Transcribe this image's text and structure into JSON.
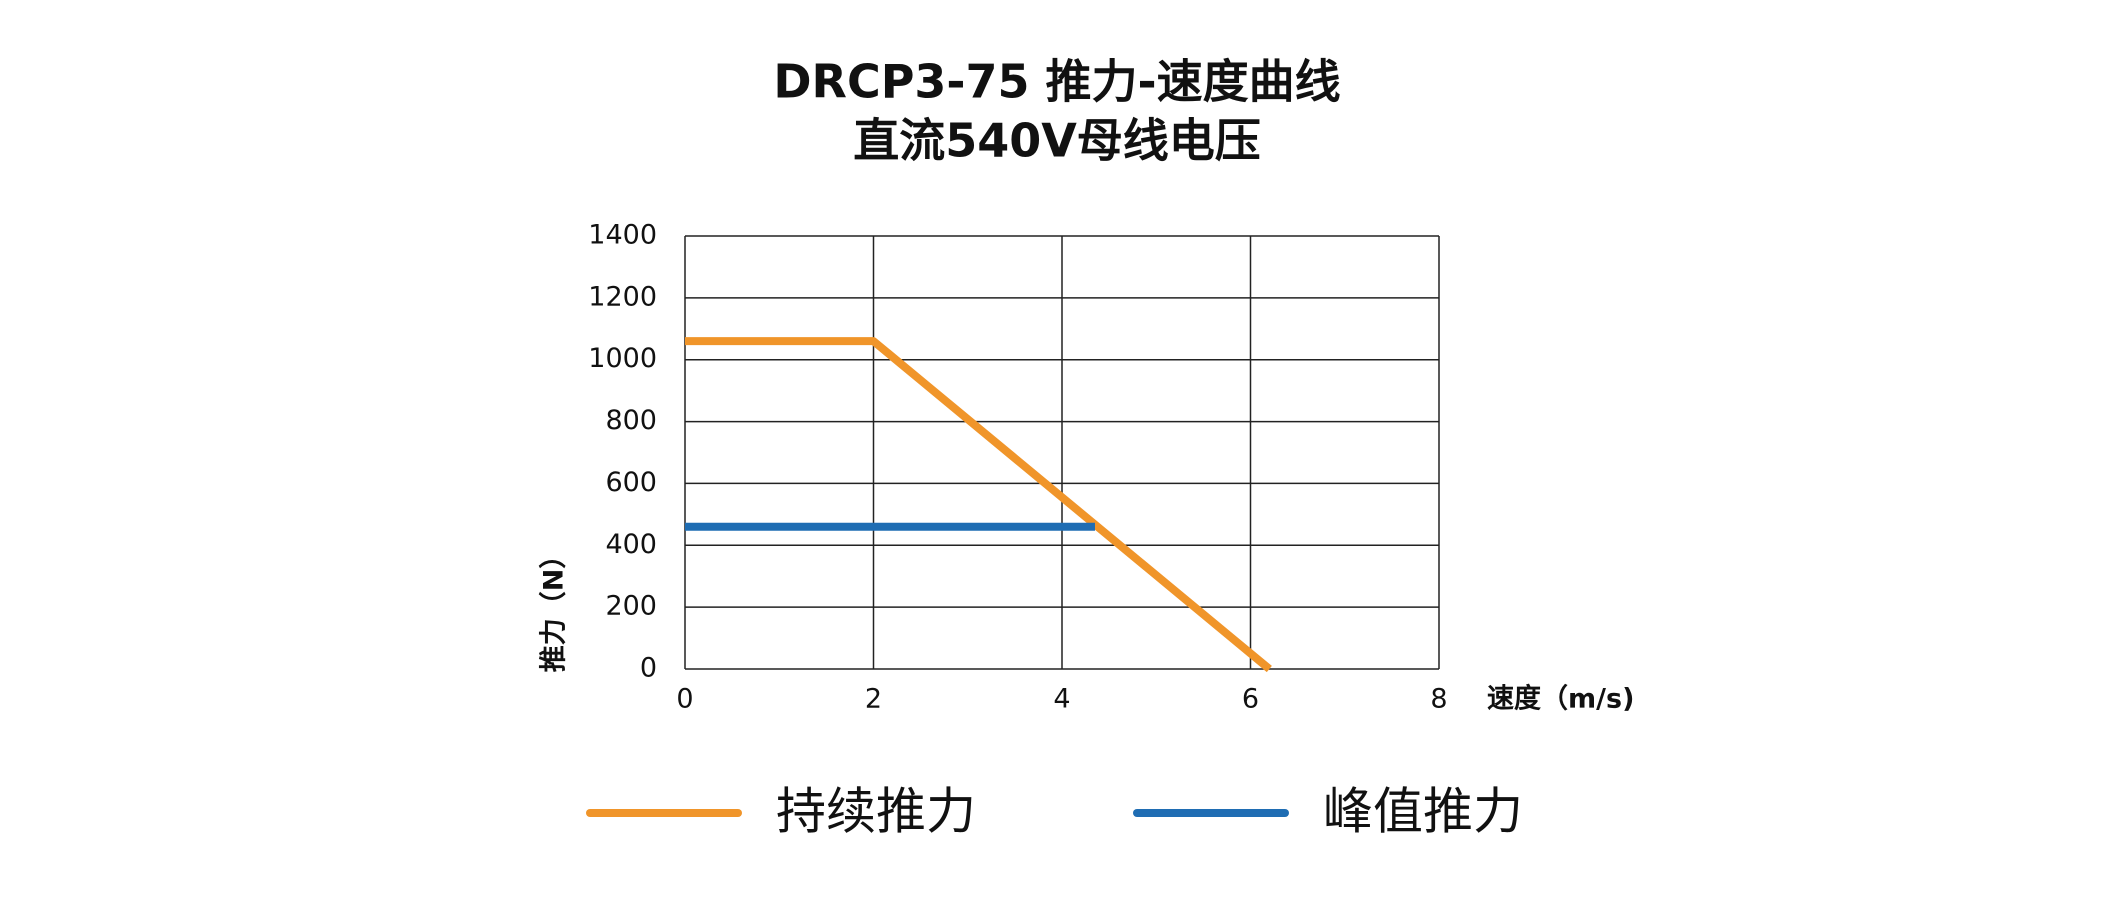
{
  "chart_data": {
    "type": "line",
    "title": "DRCP3-75 推力-速度曲线",
    "subtitle": "直流540V母线电压",
    "x_label": "速度（m/s)",
    "y_label": "推力（N）",
    "series": [
      {
        "name": "持续推力",
        "color": "#f0952a",
        "x": [
          0,
          2,
          6.2
        ],
        "values": [
          1060,
          1060,
          0
        ]
      },
      {
        "name": "峰值推力",
        "color": "#1f6db3",
        "x": [
          0,
          4.35
        ],
        "values": [
          460,
          460
        ]
      }
    ],
    "xlim": [
      0,
      8
    ],
    "xticks": [
      0,
      2,
      4,
      6,
      8
    ],
    "ylim": [
      0,
      1400
    ],
    "yticks": [
      0,
      200,
      400,
      600,
      800,
      1000,
      1200,
      1400
    ],
    "grid": true
  }
}
